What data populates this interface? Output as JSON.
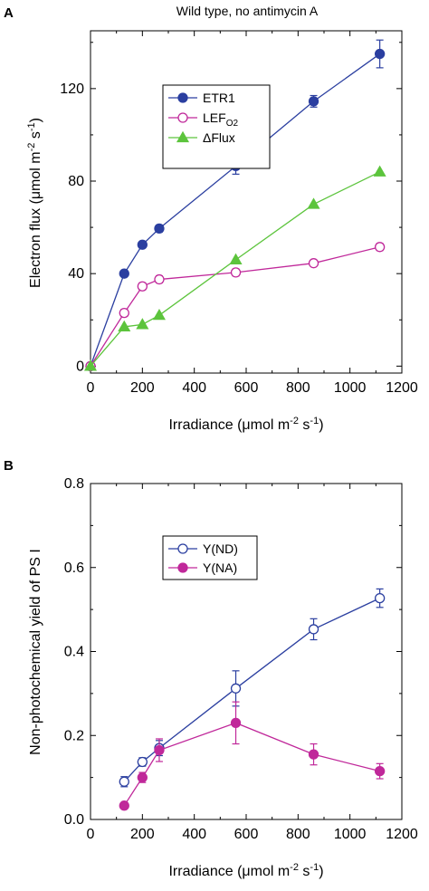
{
  "chart_data": [
    {
      "panel": "A",
      "type": "line",
      "title": "Wild type, no antimycin A",
      "xlabel": "Irradiance  (μmol m⁻² s⁻¹)",
      "ylabel": "Electron flux  (μmol m⁻² s⁻¹)",
      "xlim": [
        0,
        1200
      ],
      "ylim": [
        -3,
        145
      ],
      "xticks": [
        0,
        200,
        400,
        600,
        800,
        1000,
        1200
      ],
      "yticks": [
        0,
        40,
        80,
        120
      ],
      "xtick_labels": [
        "0",
        "200",
        "400",
        "600",
        "800",
        "1000",
        "1200"
      ],
      "ytick_labels": [
        "0",
        "40",
        "80",
        "120"
      ],
      "legend_position": "top-left",
      "series": [
        {
          "name": "ETR1",
          "color": "#2b3fa0",
          "marker": "circle",
          "filled": true,
          "x": [
            0,
            130,
            200,
            265,
            560,
            860,
            1115
          ],
          "y": [
            0,
            40,
            52.5,
            59.5,
            86.5,
            114.5,
            135
          ],
          "err": [
            0,
            1,
            1,
            1.5,
            3.5,
            2.5,
            6
          ]
        },
        {
          "name": "LEF",
          "name_sub": "O2",
          "color": "#c0289a",
          "marker": "circle",
          "filled": false,
          "x": [
            0,
            130,
            200,
            265,
            560,
            860,
            1115
          ],
          "y": [
            0,
            23,
            34.5,
            37.5,
            40.5,
            44.5,
            51.5
          ],
          "err": [
            0,
            1.5,
            1.5,
            1.5,
            1.5,
            1,
            1.5
          ]
        },
        {
          "name": "ΔFlux",
          "color": "#5cc43c",
          "marker": "triangle",
          "filled": true,
          "x": [
            0,
            130,
            200,
            265,
            560,
            860,
            1115
          ],
          "y": [
            0,
            17,
            18,
            22,
            46,
            70,
            84
          ],
          "err": [
            0,
            0,
            0,
            0,
            0,
            0,
            0
          ]
        }
      ]
    },
    {
      "panel": "B",
      "type": "line",
      "title": "",
      "xlabel": "Irradiance  (μmol m⁻² s⁻¹)",
      "ylabel": "Non-photochemical yield of PS I",
      "xlim": [
        0,
        1200
      ],
      "ylim": [
        0,
        0.8
      ],
      "xticks": [
        0,
        200,
        400,
        600,
        800,
        1000,
        1200
      ],
      "yticks": [
        0,
        0.2,
        0.4,
        0.6,
        0.8
      ],
      "xtick_labels": [
        "0",
        "200",
        "400",
        "600",
        "800",
        "1000",
        "1200"
      ],
      "ytick_labels": [
        "0.0",
        "0.2",
        "0.4",
        "0.6",
        "0.8"
      ],
      "legend_position": "top-left",
      "series": [
        {
          "name": "Y(ND)",
          "color": "#2b3fa0",
          "marker": "circle",
          "filled": false,
          "x": [
            130,
            200,
            265,
            560,
            860,
            1115
          ],
          "y": [
            0.09,
            0.137,
            0.17,
            0.312,
            0.453,
            0.527
          ],
          "err": [
            0.012,
            0.01,
            0.018,
            0.042,
            0.025,
            0.022
          ]
        },
        {
          "name": "Y(NA)",
          "color": "#c0289a",
          "marker": "circle",
          "filled": true,
          "x": [
            130,
            200,
            265,
            560,
            860,
            1115
          ],
          "y": [
            0.033,
            0.1,
            0.165,
            0.23,
            0.155,
            0.115
          ],
          "err": [
            0,
            0.012,
            0.027,
            0.05,
            0.025,
            0.018
          ]
        }
      ]
    }
  ]
}
